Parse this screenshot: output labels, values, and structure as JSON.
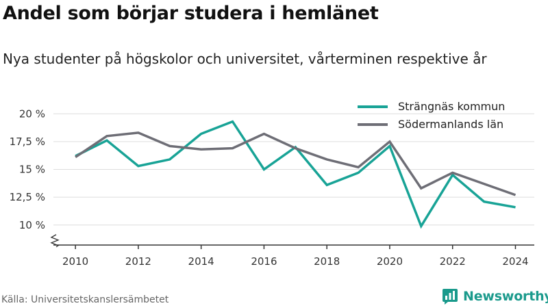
{
  "header": {
    "title": "Andel som börjar studera i hemlänet",
    "subtitle": "Nya studenter på högskolor och universitet, vårterminen respektive år"
  },
  "footer": {
    "source": "Källa: Universitetskanslersämbetet",
    "brand": "Newsworthy"
  },
  "colors": {
    "series_1": "#18a396",
    "series_2": "#6e6e76",
    "grid": "#dddddd",
    "axis": "#333333",
    "brand": "#1a9a8c"
  },
  "chart_data": {
    "type": "line",
    "x": [
      2010,
      2011,
      2012,
      2013,
      2014,
      2015,
      2016,
      2017,
      2018,
      2019,
      2020,
      2021,
      2022,
      2023,
      2024
    ],
    "x_ticks": [
      2010,
      2012,
      2014,
      2016,
      2018,
      2020,
      2022,
      2024
    ],
    "y_ticks": [
      10,
      12.5,
      15,
      17.5,
      20
    ],
    "y_tick_labels": [
      "10 %",
      "12,5 %",
      "15 %",
      "17,5 %",
      "20 %"
    ],
    "ylim": [
      8.2,
      21
    ],
    "xlim": [
      2009.3,
      2024.6
    ],
    "y_axis_break": true,
    "grid": "horizontal",
    "legend_position": "top-right",
    "series": [
      {
        "name": "Strängnäs kommun",
        "values": [
          16.2,
          17.6,
          15.3,
          15.9,
          18.2,
          19.3,
          15.0,
          17.0,
          13.6,
          14.7,
          17.1,
          9.9,
          14.5,
          12.1,
          11.6
        ]
      },
      {
        "name": "Södermanlands län",
        "values": [
          16.1,
          18.0,
          18.3,
          17.1,
          16.8,
          16.9,
          18.2,
          16.9,
          15.9,
          15.2,
          17.5,
          13.3,
          14.7,
          13.7,
          12.7
        ]
      }
    ]
  }
}
